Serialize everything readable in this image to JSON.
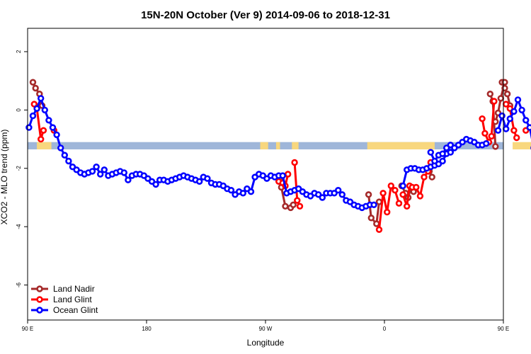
{
  "chart_data": {
    "type": "line",
    "title": "15N-20N October (Ver 9)   2014-09-06 to 2018-12-31",
    "xlabel": "Longitude",
    "ylabel": "XCO2 - MLO trend (ppm)",
    "xlim": [
      90,
      450
    ],
    "ylim": [
      -7.2,
      2.8
    ],
    "x_ticks": [
      {
        "value": 90,
        "label": "90 E"
      },
      {
        "value": 180,
        "label": "180"
      },
      {
        "value": 270,
        "label": "90 W"
      },
      {
        "value": 360,
        "label": "0"
      },
      {
        "value": 450,
        "label": "90 E"
      },
      {
        "value": 540,
        "label": "180"
      }
    ],
    "y_ticks": [
      {
        "value": 2,
        "label": "2"
      },
      {
        "value": 0,
        "label": "0"
      },
      {
        "value": -2,
        "label": "-2"
      },
      {
        "value": -4,
        "label": "-4"
      },
      {
        "value": -6,
        "label": "-6"
      }
    ],
    "legend_position": "bottom-left",
    "land_mask_strip": {
      "y_range": [
        -1.35,
        -1.1
      ],
      "ocean_color": "#9fb6d9",
      "land_color": "#f8d77e",
      "land_segments": [
        [
          97,
          108
        ],
        [
          266,
          272
        ],
        [
          278,
          281
        ],
        [
          290,
          295
        ],
        [
          347,
          398
        ],
        [
          457,
          472
        ]
      ]
    },
    "series": [
      {
        "name": "Land Nadir",
        "color": "#a52a2a",
        "x": [
          94,
          96,
          99,
          101,
          440,
          442,
          444,
          449,
          451,
          453,
          455
        ],
        "y": [
          0.95,
          0.75,
          0.55,
          0.15,
          0.55,
          0.3,
          -1.25,
          0.95,
          0.75,
          0.55,
          0.15
        ],
        "segments": [
          [
            0,
            4
          ],
          [
            4,
            7
          ],
          [
            7,
            11
          ]
        ],
        "extra_segments": [
          {
            "x": [
              281,
              282,
              285
            ],
            "y": [
              -2.4,
              -2.65,
              -3.3
            ]
          },
          {
            "x": [
              289,
              291
            ],
            "y": [
              -3.35,
              -3.25
            ]
          },
          {
            "x": [
              348,
              350,
              354,
              356
            ],
            "y": [
              -2.9,
              -3.7,
              -3.9,
              -3.15
            ]
          },
          {
            "x": [
              373,
              376,
              378,
              380,
              382
            ],
            "y": [
              -2.6,
              -2.85,
              -3.0,
              -2.65,
              -2.8
            ]
          },
          {
            "x": [
              394,
              396
            ],
            "y": [
              -2.1,
              -2.3
            ]
          },
          {
            "x": [
              444,
              446,
              448,
              451
            ],
            "y": [
              -0.4,
              -0.1,
              0.4,
              0.95
            ]
          }
        ]
      },
      {
        "name": "Land Glint",
        "color": "#ff0000",
        "x": [
          95,
          97,
          100,
          102
        ],
        "y": [
          0.2,
          0.05,
          -1.0,
          -0.7
        ],
        "segments": [
          [
            0,
            4
          ]
        ],
        "extra_segments": [
          {
            "x": [
              110
            ],
            "y": [
              -0.7
            ]
          },
          {
            "x": [
              280,
              283,
              285,
              287
            ],
            "y": [
              -2.45,
              -2.5,
              -2.6,
              -2.2
            ]
          },
          {
            "x": [
              292,
              294,
              296
            ],
            "y": [
              -1.8,
              -3.1,
              -3.3
            ]
          },
          {
            "x": [
              356,
              359,
              362,
              365,
              368,
              371
            ],
            "y": [
              -4.1,
              -2.85,
              -3.5,
              -2.6,
              -2.75,
              -3.2
            ]
          },
          {
            "x": [
              374,
              377,
              379,
              381,
              384,
              387,
              390,
              393,
              395
            ],
            "y": [
              -2.9,
              -3.3,
              -2.6,
              -2.65,
              -2.65,
              -2.95,
              -2.3,
              -2.1,
              -1.8
            ]
          },
          {
            "x": [
              434,
              436,
              439,
              441,
              443
            ],
            "y": [
              -0.3,
              -0.8,
              -1.1,
              -0.9,
              0.3
            ]
          },
          {
            "x": [
              452,
              455,
              458,
              460
            ],
            "y": [
              0.2,
              0.05,
              -0.7,
              -0.95
            ]
          },
          {
            "x": [
              467
            ],
            "y": [
              -0.7
            ]
          }
        ]
      },
      {
        "name": "Ocean Glint",
        "color": "#0000ff",
        "x": [
          91,
          94,
          97,
          100,
          103,
          106,
          109,
          112,
          115,
          118,
          121,
          124,
          127,
          130,
          133,
          136,
          139,
          142,
          145,
          148,
          151,
          154,
          157,
          160,
          163,
          166,
          169,
          172,
          175,
          178,
          181,
          184,
          187,
          190,
          193,
          196,
          199,
          202,
          205,
          208,
          211,
          214,
          217,
          220,
          223,
          226,
          229,
          232,
          235,
          238,
          241,
          244,
          247,
          250,
          253,
          256,
          259,
          262,
          265,
          268,
          271,
          274,
          277,
          280,
          283,
          286,
          289,
          292,
          295,
          298,
          301,
          304,
          307,
          310,
          313,
          316,
          319,
          322,
          325,
          328,
          331,
          334,
          337,
          340,
          343,
          346,
          349,
          352
        ],
        "y": [
          -0.6,
          -0.2,
          0.05,
          0.4,
          0.0,
          -0.35,
          -0.6,
          -0.85,
          -1.3,
          -1.55,
          -1.75,
          -1.95,
          -2.05,
          -2.15,
          -2.2,
          -2.15,
          -2.1,
          -1.95,
          -2.2,
          -2.05,
          -2.25,
          -2.2,
          -2.15,
          -2.1,
          -2.15,
          -2.4,
          -2.25,
          -2.2,
          -2.2,
          -2.25,
          -2.35,
          -2.45,
          -2.55,
          -2.4,
          -2.4,
          -2.45,
          -2.4,
          -2.35,
          -2.3,
          -2.25,
          -2.3,
          -2.35,
          -2.4,
          -2.45,
          -2.3,
          -2.35,
          -2.5,
          -2.55,
          -2.55,
          -2.6,
          -2.7,
          -2.75,
          -2.9,
          -2.8,
          -2.85,
          -2.7,
          -2.8,
          -2.3,
          -2.2,
          -2.25,
          -2.35,
          -2.25,
          -2.3,
          -2.25,
          -2.25,
          -2.85,
          -2.8,
          -2.75,
          -2.7,
          -2.8,
          -2.9,
          -2.95,
          -2.85,
          -2.9,
          -3.0,
          -2.85,
          -2.85,
          -2.85,
          -2.75,
          -2.9,
          -3.1,
          -3.15,
          -3.25,
          -3.3,
          -3.35,
          -3.3,
          -3.25,
          -3.25
        ],
        "segments": [
          [
            0,
            88
          ]
        ],
        "extra_segments": [
          {
            "x": [
              374,
              377,
              380,
              383,
              386,
              389,
              392,
              395,
              398,
              401,
              404,
              407,
              410,
              413,
              416,
              419,
              422,
              425,
              428,
              431,
              434,
              437
            ],
            "y": [
              -2.6,
              -2.05,
              -2.0,
              -2.0,
              -2.05,
              -2.05,
              -2.0,
              -1.95,
              -1.9,
              -1.85,
              -1.75,
              -1.5,
              -1.45,
              -1.3,
              -1.2,
              -1.1,
              -1.0,
              -1.05,
              -1.1,
              -1.2,
              -1.2,
              -1.15
            ]
          },
          {
            "x": [
              395,
              398,
              401,
              404,
              407,
              410
            ],
            "y": [
              -1.45,
              -1.75,
              -1.55,
              -1.5,
              -1.3,
              -1.2
            ]
          },
          {
            "x": [
              446,
              449,
              452,
              455,
              458,
              461,
              464,
              467,
              470,
              473,
              476,
              479,
              482,
              485,
              488,
              491,
              494,
              497,
              500,
              503,
              506,
              509
            ],
            "y": [
              -0.7,
              -0.2,
              -0.65,
              -0.3,
              -0.05,
              0.35,
              0.0,
              -0.35,
              -0.6,
              -1.3,
              -1.55,
              -1.75,
              -1.95,
              -2.05,
              -2.15,
              -2.2,
              -2.15,
              -1.95,
              -2.2,
              -2.05,
              -2.25,
              -2.25
            ]
          }
        ]
      }
    ]
  }
}
